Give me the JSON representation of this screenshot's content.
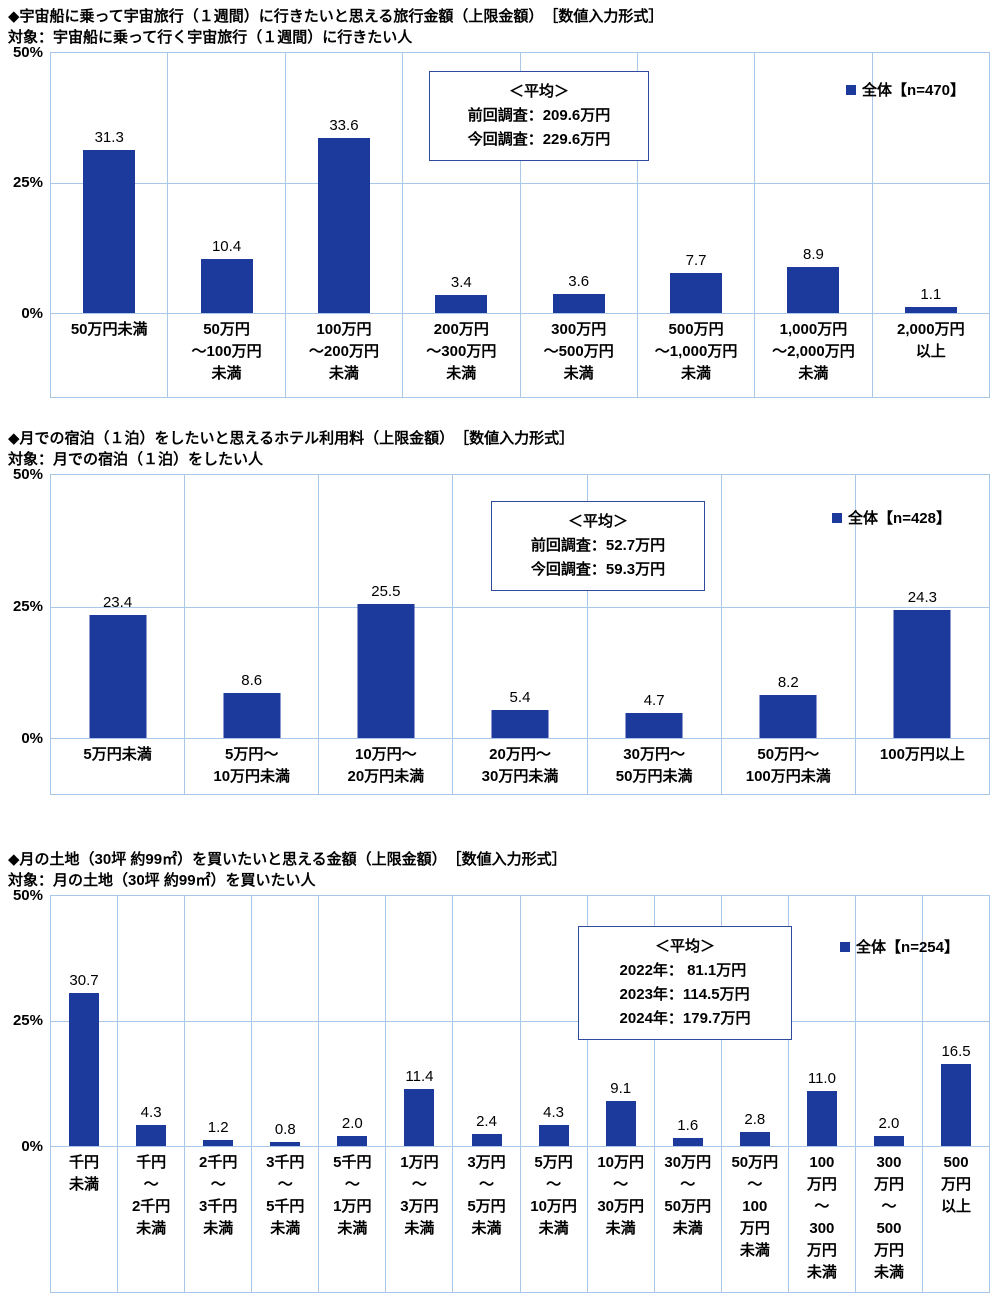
{
  "colors": {
    "bar": "#1b3a9b",
    "grid": "#a9c7e8",
    "box_border": "#2f4b9e"
  },
  "chart_data": [
    {
      "type": "bar",
      "title": "◆宇宙船に乗って宇宙旅行（１週間）に行きたいと思える旅行金額（上限金額）　［数値入力形式］",
      "subtitle": "対象：宇宙船に乗って行く宇宙旅行（１週間）に行きたい人",
      "legend": "全体【n=470】",
      "legend_position": "top-right",
      "average_note": {
        "heading": "＜平均＞",
        "lines": [
          "前回調査：209.6万円",
          "今回調査：229.6万円"
        ]
      },
      "yticks": [
        "50%",
        "25%",
        "0%"
      ],
      "ylim": [
        0,
        50
      ],
      "unit": "%",
      "grid": true,
      "categories": [
        "50万円未満",
        "50万円\n～100万円\n未満",
        "100万円\n～200万円\n未満",
        "200万円\n～300万円\n未満",
        "300万円\n～500万円\n未満",
        "500万円\n～1,000万円\n未満",
        "1,000万円\n～2,000万円\n未満",
        "2,000万円\n以上"
      ],
      "values": [
        31.3,
        10.4,
        33.6,
        3.4,
        3.6,
        7.7,
        8.9,
        1.1
      ]
    },
    {
      "type": "bar",
      "title": "◆月での宿泊（１泊）をしたいと思えるホテル利用料（上限金額）　［数値入力形式］",
      "subtitle": "対象：月での宿泊（１泊）をしたい人",
      "legend": "全体【n=428】",
      "legend_position": "top-right",
      "average_note": {
        "heading": "＜平均＞",
        "lines": [
          "前回調査：52.7万円",
          "今回調査：59.3万円"
        ]
      },
      "yticks": [
        "50%",
        "25%",
        "0%"
      ],
      "ylim": [
        0,
        50
      ],
      "unit": "%",
      "grid": true,
      "categories": [
        "5万円未満",
        "5万円～\n10万円未満",
        "10万円～\n20万円未満",
        "20万円～\n30万円未満",
        "30万円～\n50万円未満",
        "50万円～\n100万円未満",
        "100万円以上"
      ],
      "values": [
        23.4,
        8.6,
        25.5,
        5.4,
        4.7,
        8.2,
        24.3
      ]
    },
    {
      "type": "bar",
      "title": "◆月の土地（30坪 約99㎡）を買いたいと思える金額（上限金額）　［数値入力形式］",
      "subtitle": "対象：月の土地（30坪 約99㎡）を買いたい人",
      "legend": "全体【n=254】",
      "legend_position": "top-right",
      "average_note": {
        "heading": "＜平均＞",
        "lines": [
          "2022年： 81.1万円",
          "2023年：114.5万円",
          "2024年：179.7万円"
        ]
      },
      "yticks": [
        "50%",
        "25%",
        "0%"
      ],
      "ylim": [
        0,
        50
      ],
      "unit": "%",
      "grid": true,
      "categories": [
        "千円\n未満",
        "千円\n～\n2千円\n未満",
        "2千円\n～\n3千円\n未満",
        "3千円\n～\n5千円\n未満",
        "5千円\n～\n1万円\n未満",
        "1万円\n～\n3万円\n未満",
        "3万円\n～\n5万円\n未満",
        "5万円\n～\n10万円\n未満",
        "10万円\n～\n30万円\n未満",
        "30万円\n～\n50万円\n未満",
        "50万円\n～\n100\n万円\n未満",
        "100\n万円\n～\n300\n万円\n未満",
        "300\n万円\n～\n500\n万円\n未満",
        "500\n万円\n以上"
      ],
      "values": [
        30.7,
        4.3,
        1.2,
        0.8,
        2.0,
        11.4,
        2.4,
        4.3,
        9.1,
        1.6,
        2.8,
        11.0,
        2.0,
        16.5
      ]
    }
  ]
}
